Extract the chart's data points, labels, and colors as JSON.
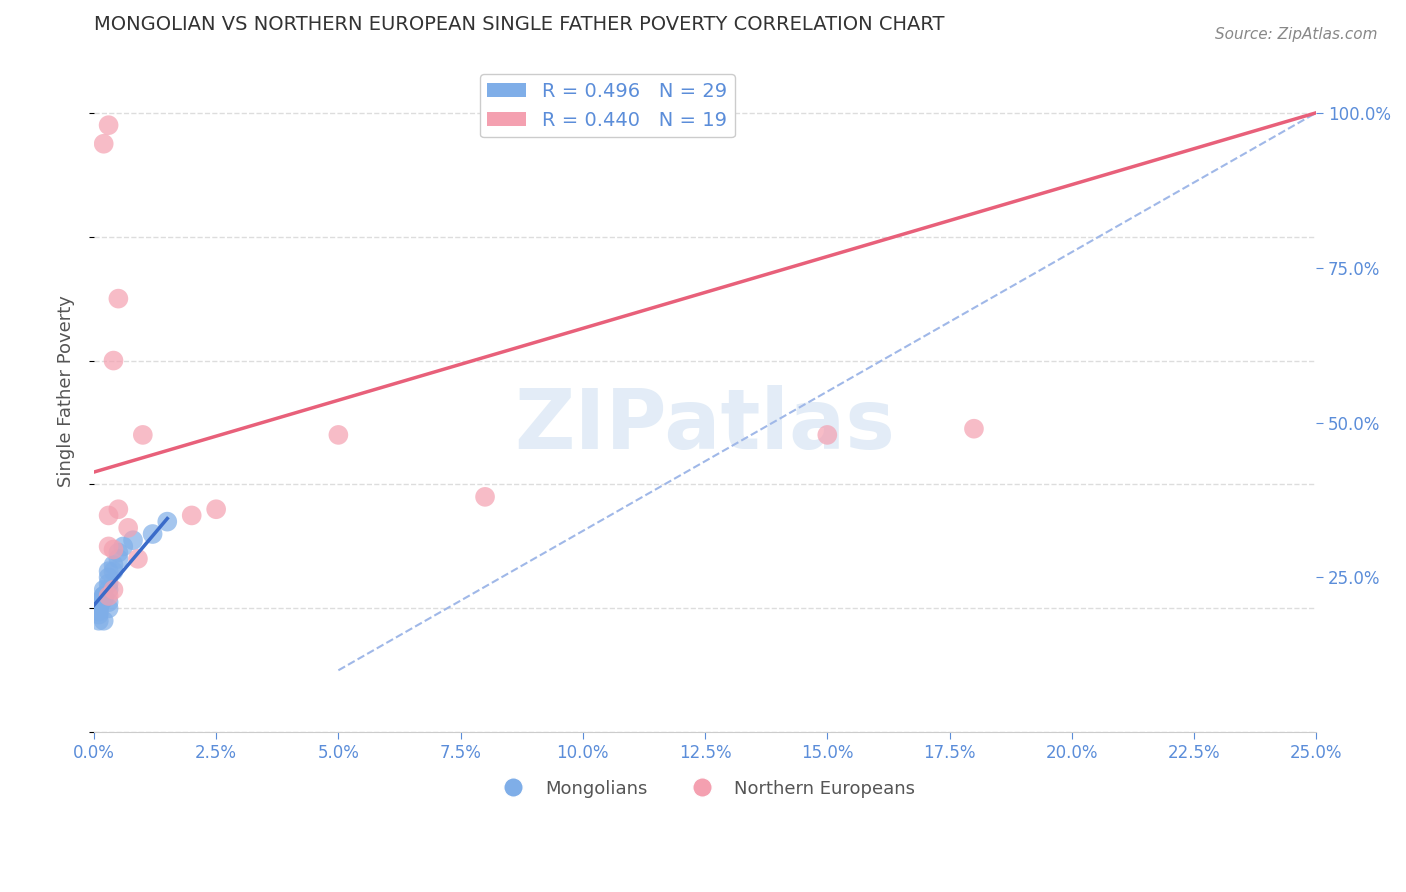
{
  "title": "MONGOLIAN VS NORTHERN EUROPEAN SINGLE FATHER POVERTY CORRELATION CHART",
  "source": "Source: ZipAtlas.com",
  "ylabel": "Single Father Poverty",
  "legend_blue_R": "0.496",
  "legend_blue_N": "29",
  "legend_pink_R": "0.440",
  "legend_pink_N": "19",
  "mongolian_x": [
    0.001,
    0.002,
    0.001,
    0.003,
    0.002,
    0.001,
    0.001,
    0.0015,
    0.001,
    0.002,
    0.003,
    0.004,
    0.005,
    0.006,
    0.002,
    0.003,
    0.001,
    0.002,
    0.001,
    0.002,
    0.003,
    0.004,
    0.003,
    0.002,
    0.003,
    0.005,
    0.008,
    0.012,
    0.015
  ],
  "mongolian_y": [
    0.2,
    0.22,
    0.18,
    0.21,
    0.23,
    0.19,
    0.195,
    0.21,
    0.205,
    0.215,
    0.24,
    0.26,
    0.28,
    0.3,
    0.22,
    0.23,
    0.2,
    0.215,
    0.21,
    0.22,
    0.25,
    0.27,
    0.26,
    0.18,
    0.2,
    0.29,
    0.31,
    0.32,
    0.34
  ],
  "northern_european_x": [
    0.003,
    0.004,
    0.002,
    0.003,
    0.005,
    0.004,
    0.003,
    0.005,
    0.007,
    0.009,
    0.003,
    0.004,
    0.01,
    0.02,
    0.05,
    0.15,
    0.18,
    0.025,
    0.08
  ],
  "northern_european_y": [
    0.22,
    0.23,
    0.95,
    0.98,
    0.7,
    0.6,
    0.35,
    0.36,
    0.33,
    0.28,
    0.3,
    0.295,
    0.48,
    0.35,
    0.48,
    0.48,
    0.49,
    0.36,
    0.38
  ],
  "xlim": [
    0.0,
    0.25
  ],
  "ylim": [
    0.0,
    1.1
  ],
  "blue_color": "#7faee8",
  "pink_color": "#f4a0b0",
  "blue_line_color": "#3a6bc9",
  "pink_line_color": "#e8607a",
  "dashed_line_color": "#a0b8e8",
  "background_color": "#ffffff",
  "grid_color": "#dddddd",
  "title_color": "#333333",
  "axis_label_color": "#555555",
  "right_tick_color": "#5b8dd9",
  "bottom_tick_color": "#5b8dd9"
}
